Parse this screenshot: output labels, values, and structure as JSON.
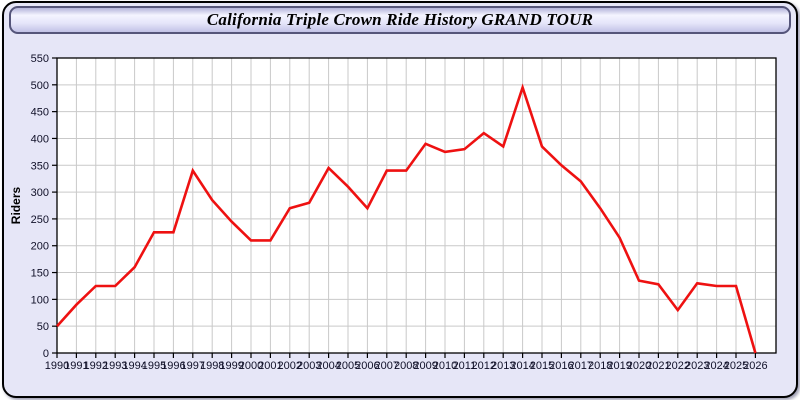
{
  "header": {
    "title": "California Triple Crown Ride History GRAND TOUR"
  },
  "colors": {
    "page_background": "#e6e6f7",
    "plot_background": "#ffffff",
    "grid_color": "#c9c9c9",
    "axis_color": "#000000",
    "label_color": "#101028",
    "line_color": "#ee1111"
  },
  "chart_data": {
    "type": "line",
    "title": "California Triple Crown Ride History GRAND TOUR",
    "xlabel": "",
    "ylabel": "Riders",
    "ylim": [
      0,
      550
    ],
    "ytick_step": 50,
    "xlim": [
      1990,
      2027
    ],
    "grid": true,
    "legend": "none",
    "series_name": "Riders",
    "points": [
      {
        "year": 1990,
        "riders": 50
      },
      {
        "year": 1991,
        "riders": 90
      },
      {
        "year": 1992,
        "riders": 125
      },
      {
        "year": 1993,
        "riders": 125
      },
      {
        "year": 1994,
        "riders": 160
      },
      {
        "year": 1995,
        "riders": 225
      },
      {
        "year": 1996,
        "riders": 225
      },
      {
        "year": 1997,
        "riders": 340
      },
      {
        "year": 1998,
        "riders": 285
      },
      {
        "year": 1999,
        "riders": 245
      },
      {
        "year": 2000,
        "riders": 210
      },
      {
        "year": 2001,
        "riders": 210
      },
      {
        "year": 2002,
        "riders": 270
      },
      {
        "year": 2003,
        "riders": 280
      },
      {
        "year": 2004,
        "riders": 345
      },
      {
        "year": 2005,
        "riders": 310
      },
      {
        "year": 2006,
        "riders": 270
      },
      {
        "year": 2007,
        "riders": 340
      },
      {
        "year": 2008,
        "riders": 340
      },
      {
        "year": 2009,
        "riders": 390
      },
      {
        "year": 2010,
        "riders": 375
      },
      {
        "year": 2011,
        "riders": 380
      },
      {
        "year": 2012,
        "riders": 410
      },
      {
        "year": 2013,
        "riders": 385
      },
      {
        "year": 2014,
        "riders": 495
      },
      {
        "year": 2015,
        "riders": 385
      },
      {
        "year": 2016,
        "riders": 350
      },
      {
        "year": 2017,
        "riders": 320
      },
      {
        "year": 2018,
        "riders": 270
      },
      {
        "year": 2019,
        "riders": 215
      },
      {
        "year": 2020,
        "riders": 135
      },
      {
        "year": 2021,
        "riders": 128
      },
      {
        "year": 2022,
        "riders": 80
      },
      {
        "year": 2023,
        "riders": 130
      },
      {
        "year": 2024,
        "riders": 125
      },
      {
        "year": 2025,
        "riders": 125
      },
      {
        "year": 2026,
        "riders": 0
      }
    ]
  }
}
